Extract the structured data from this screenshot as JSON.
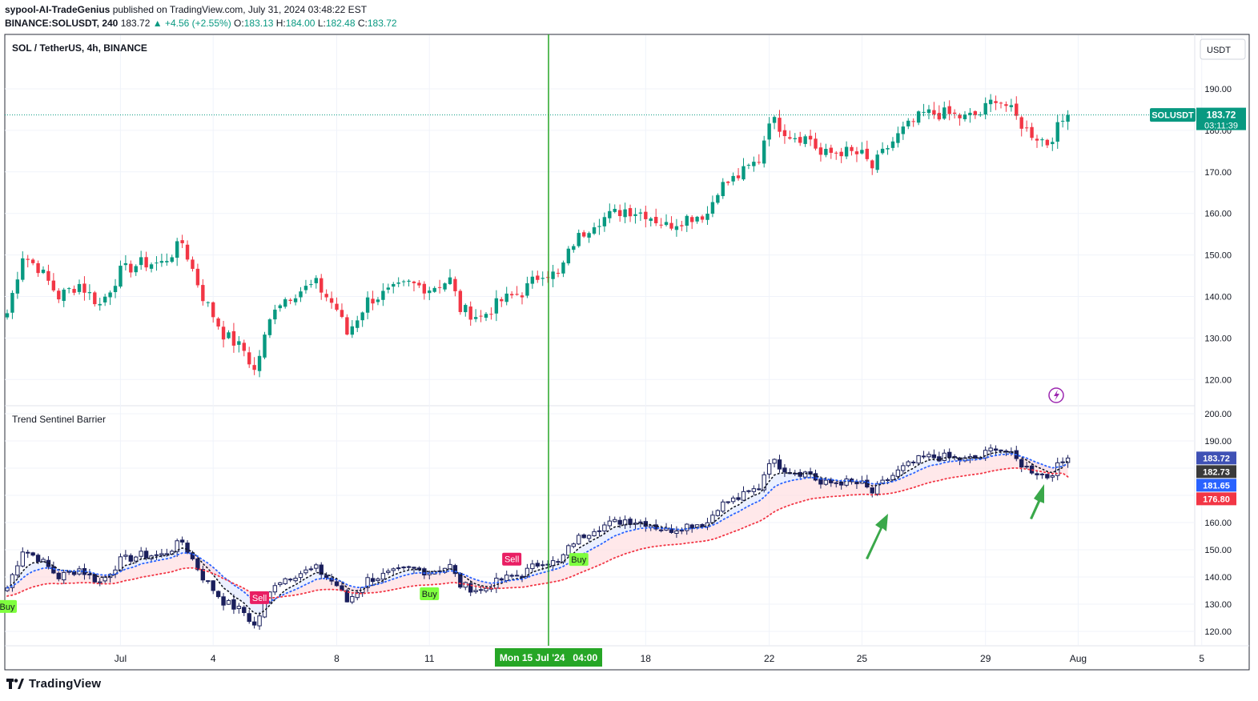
{
  "header": {
    "author": "sypool-AI-TradeGenius",
    "published_text": "published on TradingView.com, July 31, 2024 03:48:22 EST",
    "symbol_line": "BINANCE:SOLUSDT, 240",
    "last": "183.72",
    "change": "+4.56 (+2.55%)",
    "o_label": "O:",
    "o_value": "183.13",
    "h_label": "H:",
    "h_value": "184.00",
    "l_label": "L:",
    "l_value": "182.48",
    "c_label": "C:",
    "c_value": "183.72"
  },
  "pane_titles": {
    "main": "SOL / TetherUS, 4h, BINANCE",
    "indicator": "Trend Sentinel Barrier"
  },
  "currency_button": "USDT",
  "price_tag": {
    "symbol": "SOLUSDT",
    "price": "183.72",
    "countdown": "03:11:39"
  },
  "indicator_tags": [
    "183.72",
    "182.73",
    "181.65",
    "176.80"
  ],
  "crosshair_label": "Mon 15 Jul '24   04:00",
  "signals": [
    {
      "text": "Buy",
      "bar": 0
    },
    {
      "text": "Sell",
      "bar": 49
    },
    {
      "text": "Buy",
      "bar": 82
    },
    {
      "text": "Sell",
      "bar": 98
    },
    {
      "text": "Buy",
      "bar": 111
    }
  ],
  "footer_brand": "TradingView",
  "colors": {
    "up": "#089981",
    "down": "#f23645",
    "indicator_candle": "#1a1f5c",
    "blue_line": "#2962ff",
    "red_line": "#f23645",
    "crosshair": "#26a626",
    "buy_label": "#7fff3f",
    "sell_label": "#e91e63"
  },
  "chart_data": [
    {
      "type": "candlestick",
      "title": "SOL / TetherUS, 4h, BINANCE",
      "ylabel": "USDT",
      "ylim": [
        115,
        197
      ],
      "y_ticks": [
        120,
        130,
        140,
        150,
        160,
        170,
        180,
        190
      ],
      "x_ticks": [
        {
          "label": "Jul",
          "bar": 22
        },
        {
          "label": "4",
          "bar": 40
        },
        {
          "label": "8",
          "bar": 64
        },
        {
          "label": "11",
          "bar": 82
        },
        {
          "label": "18",
          "bar": 124
        },
        {
          "label": "22",
          "bar": 148
        },
        {
          "label": "25",
          "bar": 166
        },
        {
          "label": "29",
          "bar": 190
        },
        {
          "label": "Aug",
          "bar": 208
        },
        {
          "label": "5",
          "bar": 232
        }
      ],
      "anchors": [
        [
          0,
          136
        ],
        [
          3,
          150
        ],
        [
          6,
          147
        ],
        [
          10,
          140
        ],
        [
          14,
          143
        ],
        [
          18,
          138
        ],
        [
          22,
          146
        ],
        [
          26,
          148
        ],
        [
          30,
          148
        ],
        [
          34,
          153
        ],
        [
          38,
          140
        ],
        [
          42,
          131
        ],
        [
          46,
          127
        ],
        [
          48,
          122
        ],
        [
          52,
          138
        ],
        [
          56,
          141
        ],
        [
          60,
          143
        ],
        [
          64,
          137
        ],
        [
          66,
          131
        ],
        [
          70,
          139
        ],
        [
          74,
          141
        ],
        [
          78,
          143
        ],
        [
          82,
          142
        ],
        [
          86,
          144
        ],
        [
          88,
          137
        ],
        [
          92,
          135
        ],
        [
          96,
          139
        ],
        [
          100,
          141
        ],
        [
          104,
          146
        ],
        [
          107,
          145
        ],
        [
          110,
          153
        ],
        [
          114,
          158
        ],
        [
          118,
          160
        ],
        [
          120,
          161
        ],
        [
          124,
          160
        ],
        [
          128,
          157
        ],
        [
          132,
          159
        ],
        [
          136,
          160
        ],
        [
          138,
          166
        ],
        [
          142,
          169
        ],
        [
          146,
          173
        ],
        [
          148,
          183
        ],
        [
          152,
          179
        ],
        [
          156,
          178
        ],
        [
          158,
          174
        ],
        [
          162,
          175
        ],
        [
          166,
          174
        ],
        [
          168,
          171
        ],
        [
          171,
          176
        ],
        [
          174,
          180
        ],
        [
          178,
          184
        ],
        [
          182,
          184
        ],
        [
          186,
          183
        ],
        [
          189,
          184
        ],
        [
          192,
          188
        ],
        [
          194,
          186
        ],
        [
          198,
          180
        ],
        [
          202,
          177
        ],
        [
          206,
          184
        ]
      ]
    },
    {
      "type": "indicator",
      "title": "Trend Sentinel Barrier",
      "ylim": [
        115,
        203
      ],
      "y_ticks": [
        120,
        130,
        140,
        150,
        160,
        170,
        180,
        190,
        200
      ],
      "last_values": {
        "close": 183.72,
        "upper": 182.73,
        "middle": 181.65,
        "lower": 176.8
      }
    }
  ]
}
